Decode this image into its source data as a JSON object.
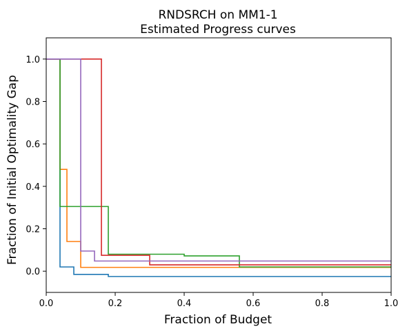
{
  "chart_data": {
    "type": "line",
    "step": "post",
    "title": "RNDSRCH on MM1-1",
    "subtitle": "Estimated Progress curves",
    "xlabel": "Fraction of Budget",
    "ylabel": "Fraction of Initial Optimality Gap",
    "xlim": [
      0,
      1
    ],
    "ylim": [
      -0.1,
      1.1
    ],
    "xticks": [
      0.0,
      0.2,
      0.4,
      0.6,
      0.8,
      1.0
    ],
    "xtick_labels": [
      "0.0",
      "0.2",
      "0.4",
      "0.6",
      "0.8",
      "1.0"
    ],
    "yticks": [
      0.0,
      0.2,
      0.4,
      0.6,
      0.8,
      1.0
    ],
    "ytick_labels": [
      "0.0",
      "0.2",
      "0.4",
      "0.6",
      "0.8",
      "1.0"
    ],
    "grid": false,
    "legend": "none",
    "series": [
      {
        "color": "#1f77b4",
        "x": [
          0,
          0.04,
          0.08,
          0.18,
          1.0
        ],
        "y": [
          1.0,
          0.02,
          -0.015,
          -0.025,
          -0.025
        ]
      },
      {
        "color": "#ff7f0e",
        "x": [
          0,
          0.04,
          0.06,
          0.1,
          1.0
        ],
        "y": [
          1.0,
          0.48,
          0.14,
          0.018,
          0.018
        ]
      },
      {
        "color": "#2ca02c",
        "x": [
          0,
          0.04,
          0.18,
          0.4,
          0.56,
          1.0
        ],
        "y": [
          1.0,
          0.305,
          0.08,
          0.072,
          0.02,
          0.02
        ]
      },
      {
        "color": "#d62728",
        "x": [
          0,
          0.16,
          0.3,
          1.0
        ],
        "y": [
          1.0,
          0.075,
          0.03,
          0.03
        ]
      },
      {
        "color": "#9467bd",
        "x": [
          0,
          0.1,
          0.14,
          1.0
        ],
        "y": [
          1.0,
          0.095,
          0.048,
          0.048
        ]
      }
    ]
  }
}
